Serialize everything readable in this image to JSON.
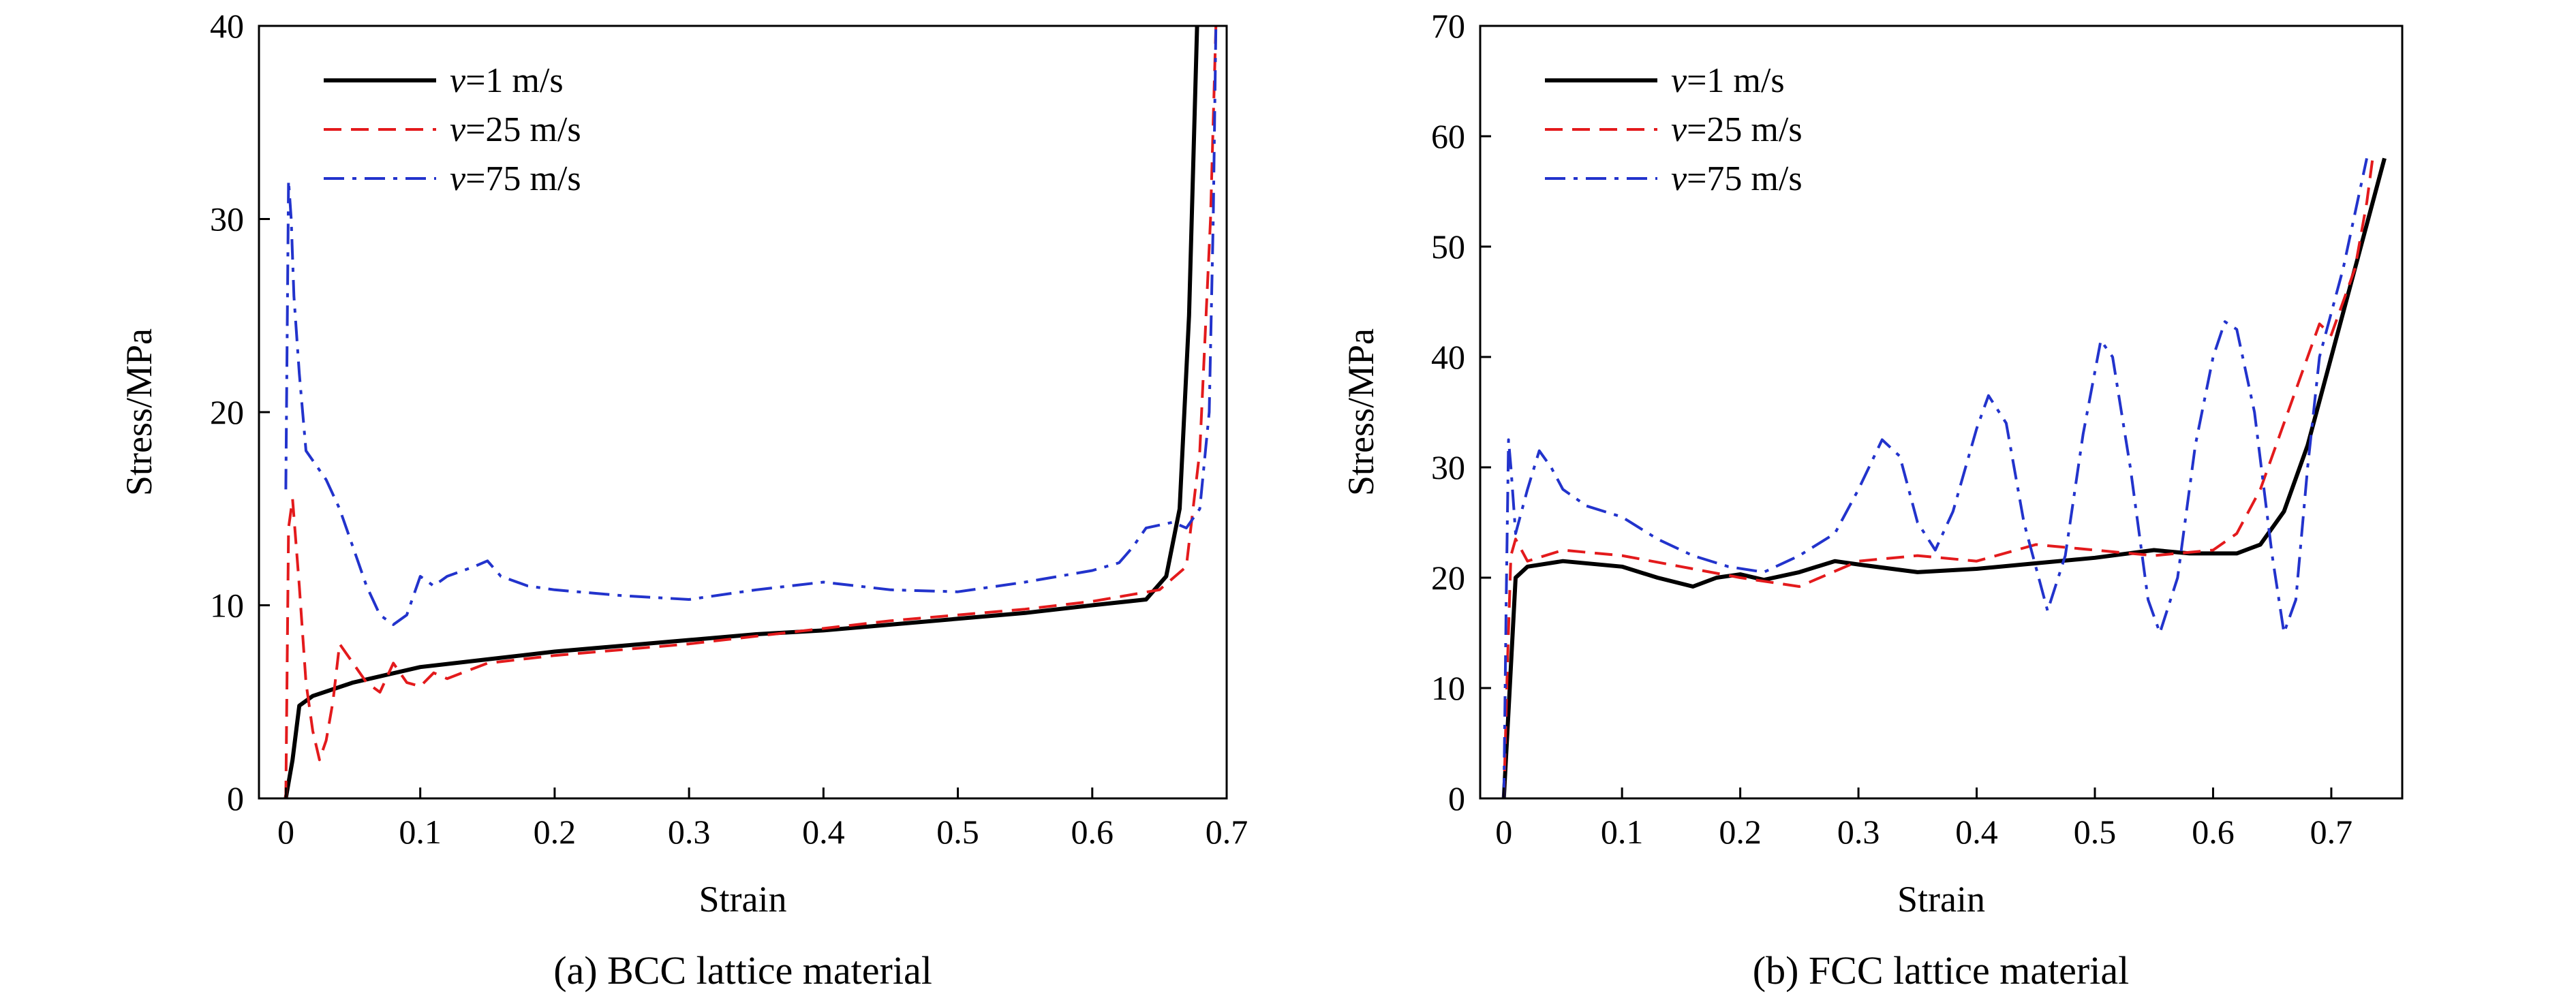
{
  "chart_data": [
    {
      "type": "line",
      "caption": "(a) BCC lattice material",
      "xlabel": "Strain",
      "ylabel": "Stress/MPa",
      "xlim": [
        -0.02,
        0.7
      ],
      "ylim": [
        0,
        40
      ],
      "xticks": [
        0,
        0.1,
        0.2,
        0.3,
        0.4,
        0.5,
        0.6,
        0.7
      ],
      "xtick_labels": [
        "0",
        "0.1",
        "0.2",
        "0.3",
        "0.4",
        "0.5",
        "0.6",
        "0.7"
      ],
      "yticks": [
        0,
        10,
        20,
        30,
        40
      ],
      "ytick_labels": [
        "0",
        "10",
        "20",
        "30",
        "40"
      ],
      "grid": false,
      "legend_position": "top-left",
      "series": [
        {
          "symbol": "v",
          "label": "=1 m/s",
          "color": "#000000",
          "dash": "solid",
          "width": 3,
          "points": [
            [
              0,
              0
            ],
            [
              0.005,
              2
            ],
            [
              0.01,
              4.8
            ],
            [
              0.02,
              5.3
            ],
            [
              0.05,
              6
            ],
            [
              0.1,
              6.8
            ],
            [
              0.15,
              7.2
            ],
            [
              0.2,
              7.6
            ],
            [
              0.25,
              7.9
            ],
            [
              0.3,
              8.2
            ],
            [
              0.35,
              8.5
            ],
            [
              0.4,
              8.7
            ],
            [
              0.45,
              9
            ],
            [
              0.5,
              9.3
            ],
            [
              0.55,
              9.6
            ],
            [
              0.6,
              10
            ],
            [
              0.64,
              10.3
            ],
            [
              0.655,
              11.5
            ],
            [
              0.665,
              15
            ],
            [
              0.672,
              25
            ],
            [
              0.678,
              40
            ]
          ]
        },
        {
          "symbol": "v",
          "label": "=25 m/s",
          "color": "#e31a1c",
          "dash": "dashed",
          "width": 2,
          "points": [
            [
              0,
              0
            ],
            [
              0.002,
              14
            ],
            [
              0.005,
              15.5
            ],
            [
              0.01,
              11
            ],
            [
              0.015,
              6
            ],
            [
              0.02,
              3.5
            ],
            [
              0.025,
              2
            ],
            [
              0.03,
              3
            ],
            [
              0.035,
              5
            ],
            [
              0.04,
              8
            ],
            [
              0.05,
              7
            ],
            [
              0.06,
              6
            ],
            [
              0.07,
              5.5
            ],
            [
              0.08,
              7
            ],
            [
              0.09,
              6
            ],
            [
              0.1,
              5.8
            ],
            [
              0.11,
              6.5
            ],
            [
              0.12,
              6.2
            ],
            [
              0.15,
              7
            ],
            [
              0.2,
              7.4
            ],
            [
              0.25,
              7.7
            ],
            [
              0.3,
              8
            ],
            [
              0.35,
              8.4
            ],
            [
              0.4,
              8.8
            ],
            [
              0.45,
              9.2
            ],
            [
              0.5,
              9.5
            ],
            [
              0.55,
              9.8
            ],
            [
              0.6,
              10.2
            ],
            [
              0.65,
              10.8
            ],
            [
              0.67,
              12
            ],
            [
              0.68,
              18
            ],
            [
              0.688,
              30
            ],
            [
              0.692,
              40
            ]
          ]
        },
        {
          "symbol": "v",
          "label": "=75 m/s",
          "color": "#2233cc",
          "dash": "dashdot",
          "width": 2,
          "points": [
            [
              0,
              16
            ],
            [
              0.002,
              32
            ],
            [
              0.004,
              30
            ],
            [
              0.006,
              26
            ],
            [
              0.01,
              22
            ],
            [
              0.015,
              18
            ],
            [
              0.02,
              17.5
            ],
            [
              0.03,
              16.5
            ],
            [
              0.04,
              15
            ],
            [
              0.05,
              13
            ],
            [
              0.06,
              11
            ],
            [
              0.07,
              9.5
            ],
            [
              0.08,
              9
            ],
            [
              0.09,
              9.5
            ],
            [
              0.1,
              11.5
            ],
            [
              0.11,
              11
            ],
            [
              0.12,
              11.5
            ],
            [
              0.14,
              12
            ],
            [
              0.15,
              12.3
            ],
            [
              0.16,
              11.5
            ],
            [
              0.18,
              11
            ],
            [
              0.2,
              10.8
            ],
            [
              0.25,
              10.5
            ],
            [
              0.3,
              10.3
            ],
            [
              0.35,
              10.8
            ],
            [
              0.4,
              11.2
            ],
            [
              0.45,
              10.8
            ],
            [
              0.5,
              10.7
            ],
            [
              0.55,
              11.2
            ],
            [
              0.6,
              11.8
            ],
            [
              0.62,
              12.2
            ],
            [
              0.63,
              13
            ],
            [
              0.64,
              14
            ],
            [
              0.66,
              14.3
            ],
            [
              0.67,
              14
            ],
            [
              0.68,
              15
            ],
            [
              0.687,
              20
            ],
            [
              0.69,
              30
            ],
            [
              0.692,
              40
            ]
          ]
        }
      ]
    },
    {
      "type": "line",
      "caption": "(b) FCC lattice material",
      "xlabel": "Strain",
      "ylabel": "Stress/MPa",
      "xlim": [
        -0.02,
        0.76
      ],
      "ylim": [
        0,
        70
      ],
      "xticks": [
        0,
        0.1,
        0.2,
        0.3,
        0.4,
        0.5,
        0.6,
        0.7
      ],
      "xtick_labels": [
        "0",
        "0.1",
        "0.2",
        "0.3",
        "0.4",
        "0.5",
        "0.6",
        "0.7"
      ],
      "yticks": [
        0,
        10,
        20,
        30,
        40,
        50,
        60,
        70
      ],
      "ytick_labels": [
        "0",
        "10",
        "20",
        "30",
        "40",
        "50",
        "60",
        "70"
      ],
      "grid": false,
      "legend_position": "top-left",
      "series": [
        {
          "symbol": "v",
          "label": "=1 m/s",
          "color": "#000000",
          "dash": "solid",
          "width": 3,
          "points": [
            [
              0,
              0
            ],
            [
              0.005,
              10
            ],
            [
              0.01,
              20
            ],
            [
              0.02,
              21
            ],
            [
              0.05,
              21.5
            ],
            [
              0.1,
              21
            ],
            [
              0.13,
              20
            ],
            [
              0.16,
              19.2
            ],
            [
              0.18,
              20
            ],
            [
              0.2,
              20.3
            ],
            [
              0.22,
              19.8
            ],
            [
              0.25,
              20.5
            ],
            [
              0.28,
              21.5
            ],
            [
              0.3,
              21.2
            ],
            [
              0.35,
              20.5
            ],
            [
              0.4,
              20.8
            ],
            [
              0.45,
              21.3
            ],
            [
              0.5,
              21.8
            ],
            [
              0.55,
              22.5
            ],
            [
              0.58,
              22.2
            ],
            [
              0.62,
              22.2
            ],
            [
              0.64,
              23
            ],
            [
              0.66,
              26
            ],
            [
              0.68,
              32
            ],
            [
              0.7,
              40
            ],
            [
              0.72,
              48
            ],
            [
              0.74,
              56
            ],
            [
              0.745,
              58
            ]
          ]
        },
        {
          "symbol": "v",
          "label": "=25 m/s",
          "color": "#e31a1c",
          "dash": "dashed",
          "width": 2,
          "points": [
            [
              0,
              0
            ],
            [
              0.003,
              12
            ],
            [
              0.006,
              22
            ],
            [
              0.01,
              23.5
            ],
            [
              0.02,
              21.5
            ],
            [
              0.05,
              22.5
            ],
            [
              0.1,
              22
            ],
            [
              0.15,
              21
            ],
            [
              0.2,
              20
            ],
            [
              0.25,
              19.2
            ],
            [
              0.3,
              21.5
            ],
            [
              0.35,
              22
            ],
            [
              0.4,
              21.5
            ],
            [
              0.45,
              23
            ],
            [
              0.5,
              22.5
            ],
            [
              0.55,
              22
            ],
            [
              0.6,
              22.5
            ],
            [
              0.62,
              24
            ],
            [
              0.64,
              28
            ],
            [
              0.66,
              34
            ],
            [
              0.68,
              40
            ],
            [
              0.69,
              43
            ],
            [
              0.7,
              42
            ],
            [
              0.72,
              48
            ],
            [
              0.73,
              54
            ],
            [
              0.735,
              58
            ]
          ]
        },
        {
          "symbol": "v",
          "label": "=75 m/s",
          "color": "#2233cc",
          "dash": "dashdot",
          "width": 2,
          "points": [
            [
              0,
              0
            ],
            [
              0.002,
              18
            ],
            [
              0.004,
              32.5
            ],
            [
              0.006,
              30
            ],
            [
              0.01,
              24
            ],
            [
              0.015,
              26
            ],
            [
              0.02,
              28
            ],
            [
              0.03,
              31.5
            ],
            [
              0.04,
              30
            ],
            [
              0.05,
              28
            ],
            [
              0.07,
              26.5
            ],
            [
              0.1,
              25.5
            ],
            [
              0.13,
              23.5
            ],
            [
              0.16,
              22
            ],
            [
              0.19,
              21
            ],
            [
              0.22,
              20.5
            ],
            [
              0.25,
              22
            ],
            [
              0.28,
              24
            ],
            [
              0.3,
              28
            ],
            [
              0.32,
              32.5
            ],
            [
              0.335,
              31
            ],
            [
              0.35,
              25
            ],
            [
              0.365,
              22.5
            ],
            [
              0.38,
              26
            ],
            [
              0.4,
              33.5
            ],
            [
              0.41,
              36.5
            ],
            [
              0.425,
              34
            ],
            [
              0.44,
              25
            ],
            [
              0.46,
              17
            ],
            [
              0.475,
              22
            ],
            [
              0.49,
              33
            ],
            [
              0.505,
              41.5
            ],
            [
              0.515,
              40
            ],
            [
              0.53,
              30
            ],
            [
              0.545,
              18
            ],
            [
              0.555,
              15
            ],
            [
              0.57,
              20
            ],
            [
              0.585,
              32
            ],
            [
              0.6,
              40
            ],
            [
              0.61,
              43.2
            ],
            [
              0.62,
              42.5
            ],
            [
              0.635,
              35
            ],
            [
              0.65,
              22
            ],
            [
              0.66,
              15
            ],
            [
              0.67,
              18
            ],
            [
              0.68,
              30
            ],
            [
              0.69,
              40
            ],
            [
              0.7,
              44
            ],
            [
              0.71,
              48
            ],
            [
              0.72,
              53
            ],
            [
              0.73,
              58
            ]
          ]
        }
      ]
    }
  ]
}
